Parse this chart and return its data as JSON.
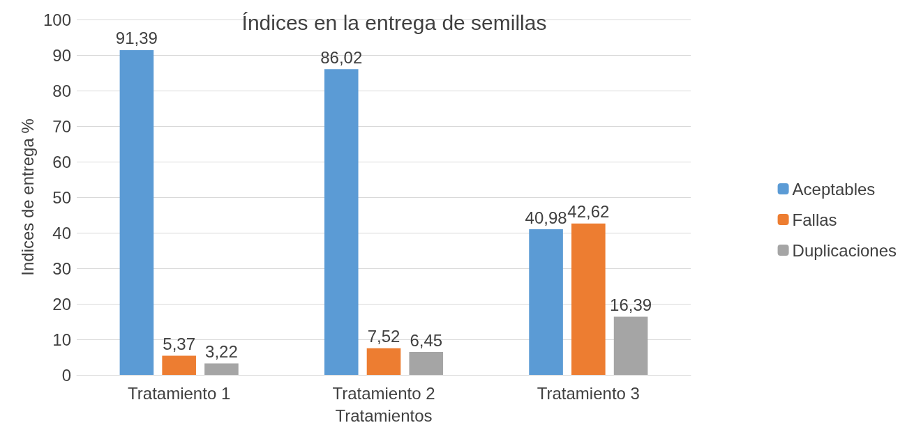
{
  "chart_data": {
    "type": "bar",
    "title": "Índices en la entrega de semillas",
    "xlabel": "Tratamientos",
    "ylabel": "Indices de entrega %",
    "categories": [
      "Tratamiento 1",
      "Tratamiento 2",
      "Tratamiento 3"
    ],
    "series": [
      {
        "name": "Aceptables",
        "color": "#5b9bd5",
        "values": [
          91.39,
          86.02,
          40.98
        ],
        "value_labels": [
          "91,39",
          "86,02",
          "40,98"
        ]
      },
      {
        "name": "Fallas",
        "color": "#ed7d31",
        "values": [
          5.37,
          7.52,
          42.62
        ],
        "value_labels": [
          "5,37",
          "7,52",
          "42,62"
        ]
      },
      {
        "name": "Duplicaciones",
        "color": "#a5a5a5",
        "values": [
          3.22,
          6.45,
          16.39
        ],
        "value_labels": [
          "3,22",
          "6,45",
          "16,39"
        ]
      }
    ],
    "ylim": [
      0,
      100
    ],
    "yticks": [
      0,
      10,
      20,
      30,
      40,
      50,
      60,
      70,
      80,
      90,
      100
    ],
    "grid": "y",
    "legend": "right"
  }
}
